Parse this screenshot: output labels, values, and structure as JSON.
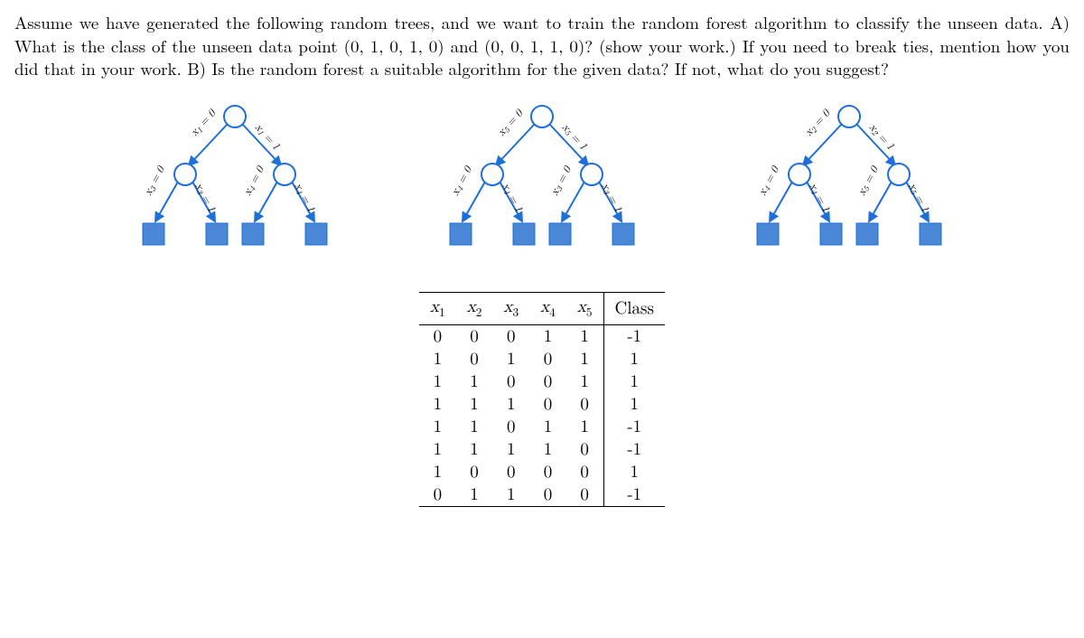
{
  "question": {
    "line1": "Assume we have generated the following random trees, and we want to train the random forest algorithm to classify the unseen data.  A) What is the class of the unseen data point (0, 1, 0, 1, 0) and (0, 0, 1, 1, 0)? (show your work.)  If you need to break ties, mention how you did that in your work.  B) Is the random forest a suitable algorithm for the given data? If not, what do you suggest?"
  },
  "trees": [
    {
      "rootSplit": "x1",
      "leftSplit": "x3",
      "rightSplit": "x4"
    },
    {
      "rootSplit": "x5",
      "leftSplit": "x4",
      "rightSplit": "x3"
    },
    {
      "rootSplit": "x2",
      "leftSplit": "x4",
      "rightSplit": "x5"
    }
  ],
  "edgeLabels": {
    "root_left": " = 0",
    "root_right": " = 1",
    "child_left": " = 0",
    "child_right": " = 1"
  },
  "table": {
    "headers": [
      "x1",
      "x2",
      "x3",
      "x4",
      "x5",
      "Class"
    ],
    "rows": [
      [
        "0",
        "0",
        "0",
        "1",
        "1",
        "-1"
      ],
      [
        "1",
        "0",
        "1",
        "0",
        "1",
        "1"
      ],
      [
        "1",
        "1",
        "0",
        "0",
        "1",
        "1"
      ],
      [
        "1",
        "1",
        "1",
        "0",
        "0",
        "1"
      ],
      [
        "1",
        "1",
        "0",
        "1",
        "1",
        "-1"
      ],
      [
        "1",
        "1",
        "1",
        "1",
        "0",
        "-1"
      ],
      [
        "1",
        "0",
        "0",
        "0",
        "0",
        "1"
      ],
      [
        "0",
        "1",
        "1",
        "0",
        "0",
        "-1"
      ]
    ]
  },
  "style": {
    "node_stroke": "#1e6fd9",
    "node_fill": "#ffffff",
    "leaf_fill": "#4a87d6",
    "edge_stroke": "#1e6fd9",
    "bg": "#ffffff"
  }
}
